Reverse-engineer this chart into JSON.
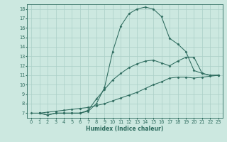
{
  "xlabel": "Humidex (Indice chaleur)",
  "xlim": [
    -0.5,
    23.5
  ],
  "ylim": [
    6.5,
    18.5
  ],
  "xticks": [
    0,
    1,
    2,
    3,
    4,
    5,
    6,
    7,
    8,
    9,
    10,
    11,
    12,
    13,
    14,
    15,
    16,
    17,
    18,
    19,
    20,
    21,
    22,
    23
  ],
  "yticks": [
    7,
    8,
    9,
    10,
    11,
    12,
    13,
    14,
    15,
    16,
    17,
    18
  ],
  "background_color": "#cce8e0",
  "grid_color": "#aacfc7",
  "line_color": "#2d6b5e",
  "line_series": [
    {
      "x": [
        1,
        2,
        3,
        4,
        5,
        6,
        7,
        8,
        9,
        10,
        11,
        12,
        13,
        14,
        15,
        16,
        17,
        18,
        19,
        20,
        21,
        22,
        23
      ],
      "y": [
        7.0,
        6.8,
        7.0,
        7.0,
        7.0,
        7.0,
        7.2,
        8.0,
        9.7,
        13.5,
        16.2,
        17.5,
        18.0,
        18.2,
        18.0,
        17.2,
        14.9,
        14.3,
        13.5,
        11.5,
        11.2,
        11.0,
        11.0
      ]
    },
    {
      "x": [
        1,
        2,
        3,
        4,
        5,
        6,
        7,
        8,
        9,
        10,
        11,
        12,
        13,
        14,
        15,
        16,
        17,
        18,
        19,
        20,
        21,
        22,
        23
      ],
      "y": [
        7.0,
        6.8,
        7.0,
        7.0,
        7.0,
        7.0,
        7.3,
        8.5,
        9.5,
        10.5,
        11.2,
        11.8,
        12.2,
        12.5,
        12.6,
        12.3,
        12.0,
        12.5,
        12.9,
        12.9,
        11.2,
        11.0,
        11.0
      ]
    },
    {
      "x": [
        0,
        1,
        2,
        3,
        4,
        5,
        6,
        7,
        8,
        9,
        10,
        11,
        12,
        13,
        14,
        15,
        16,
        17,
        18,
        19,
        20,
        21,
        22,
        23
      ],
      "y": [
        7.0,
        7.0,
        7.1,
        7.2,
        7.3,
        7.4,
        7.5,
        7.6,
        7.8,
        8.0,
        8.3,
        8.6,
        8.9,
        9.2,
        9.6,
        10.0,
        10.3,
        10.7,
        10.8,
        10.8,
        10.7,
        10.8,
        10.9,
        11.0
      ]
    }
  ]
}
